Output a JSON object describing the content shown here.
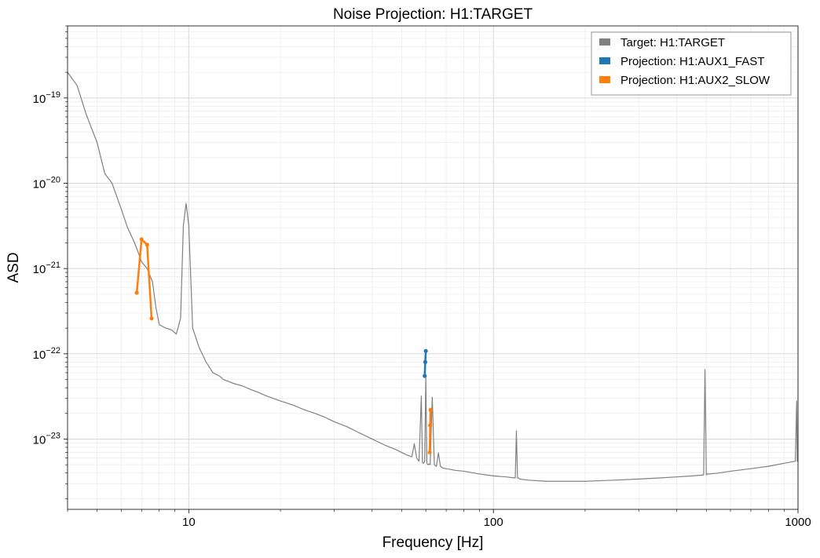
{
  "chart_data": {
    "type": "line",
    "title": "Noise Projection: H1:TARGET",
    "xlabel": "Frequency [Hz]",
    "ylabel": "ASD",
    "xscale": "log",
    "yscale": "log",
    "xlim": [
      4,
      1000
    ],
    "ylim": [
      1.5e-24,
      7e-19
    ],
    "grid": true,
    "legend_position": "top-right",
    "x_ticks": [
      {
        "value": 10,
        "label": "10"
      },
      {
        "value": 100,
        "label": "100"
      },
      {
        "value": 1000,
        "label": "1000"
      }
    ],
    "y_ticks": [
      {
        "value": 1e-19,
        "base": "10",
        "exp": "−19"
      },
      {
        "value": 1e-20,
        "base": "10",
        "exp": "−20"
      },
      {
        "value": 1e-21,
        "base": "10",
        "exp": "−21"
      },
      {
        "value": 1e-22,
        "base": "10",
        "exp": "−22"
      },
      {
        "value": 1e-23,
        "base": "10",
        "exp": "−23"
      }
    ],
    "series": [
      {
        "name": "Target: H1:TARGET",
        "color": "#808080",
        "style": "line",
        "x": [
          4.0,
          4.3,
          4.6,
          5.0,
          5.3,
          5.6,
          6.0,
          6.3,
          6.6,
          6.8,
          7.0,
          7.3,
          7.6,
          7.8,
          8.0,
          8.4,
          8.8,
          9.1,
          9.4,
          9.6,
          9.8,
          10.0,
          10.3,
          10.8,
          11.4,
          12.0,
          12.6,
          13.0,
          14.0,
          15.0,
          16.0,
          17.0,
          18.0,
          20.0,
          22.0,
          24.0,
          26.0,
          28.0,
          30.0,
          33.0,
          36.0,
          40.0,
          44.0,
          48.0,
          52.0,
          54.0,
          55.0,
          56.0,
          57.0,
          58.0,
          58.5,
          59.0,
          59.5,
          60.0,
          60.5,
          61.0,
          61.5,
          62.0,
          63.0,
          64.0,
          65.0,
          66.0,
          67.0,
          68.0,
          70.0,
          75.0,
          80.0,
          90.0,
          100.0,
          110.0,
          118.0,
          119.0,
          120.0,
          121.0,
          122.0,
          130.0,
          150.0,
          175.0,
          200.0,
          250.0,
          300.0,
          350.0,
          400.0,
          450.0,
          490.0,
          495.0,
          500.0,
          505.0,
          510.0,
          550.0,
          600.0,
          700.0,
          800.0,
          900.0,
          980.0,
          990.0,
          995.0,
          1000.0
        ],
        "y": [
          2e-19,
          1.4e-19,
          6.5e-20,
          3e-20,
          1.3e-20,
          1e-20,
          5e-21,
          3e-21,
          2.1e-21,
          1.6e-21,
          1.2e-21,
          1e-21,
          7e-22,
          3.5e-22,
          2.2e-22,
          2e-22,
          1.9e-22,
          1.7e-22,
          2.6e-22,
          3.2e-21,
          5.8e-21,
          3.2e-21,
          2e-22,
          1.2e-22,
          8e-23,
          6e-23,
          5.5e-23,
          5e-23,
          4.5e-23,
          4.2e-23,
          3.8e-23,
          3.5e-23,
          3.2e-23,
          2.8e-23,
          2.5e-23,
          2.2e-23,
          2e-23,
          1.8e-23,
          1.6e-23,
          1.4e-23,
          1.2e-23,
          1e-23,
          8.5e-24,
          7.5e-24,
          6.5e-24,
          6.2e-24,
          8.8e-24,
          6e-24,
          5.5e-24,
          3.2e-23,
          5.3e-24,
          5.2e-24,
          5.5e-24,
          5.3e-23,
          5.2e-24,
          5e-24,
          5.1e-24,
          5e-24,
          3.1e-23,
          5e-24,
          4.8e-24,
          6.9e-24,
          4.8e-24,
          4.6e-24,
          4.5e-24,
          4.3e-24,
          4.2e-24,
          3.9e-24,
          3.7e-24,
          3.6e-24,
          3.5e-24,
          1.25e-23,
          3.5e-24,
          3.5e-24,
          3.4e-24,
          3.3e-24,
          3.2e-24,
          3.2e-24,
          3.2e-24,
          3.3e-24,
          3.4e-24,
          3.5e-24,
          3.6e-24,
          3.7e-24,
          3.8e-24,
          6.5e-23,
          3.8e-24,
          3.9e-24,
          3.9e-24,
          4e-24,
          4.2e-24,
          4.5e-24,
          4.8e-24,
          5.2e-24,
          5.5e-24,
          2.8e-23,
          5.5e-24,
          5.6e-24
        ]
      },
      {
        "name": "Projection: H1:AUX1_FAST",
        "color": "#1f77b4",
        "style": "line-markers",
        "x": [
          59.5,
          59.75,
          60.0
        ],
        "y": [
          5.5e-23,
          8e-23,
          1.08e-22
        ]
      },
      {
        "name": "Projection: H1:AUX2_SLOW",
        "color": "#ff7f0e",
        "style": "line-markers",
        "orders": "two segments",
        "segments": [
          {
            "x": [
              6.75,
              7.0,
              7.3,
              7.55
            ],
            "y": [
              5.2e-22,
              2.2e-21,
              1.9e-21,
              2.6e-22
            ]
          },
          {
            "x": [
              61.8,
              62.0,
              62.2
            ],
            "y": [
              7e-24,
              1.45e-23,
              2.2e-23
            ]
          }
        ]
      }
    ]
  }
}
